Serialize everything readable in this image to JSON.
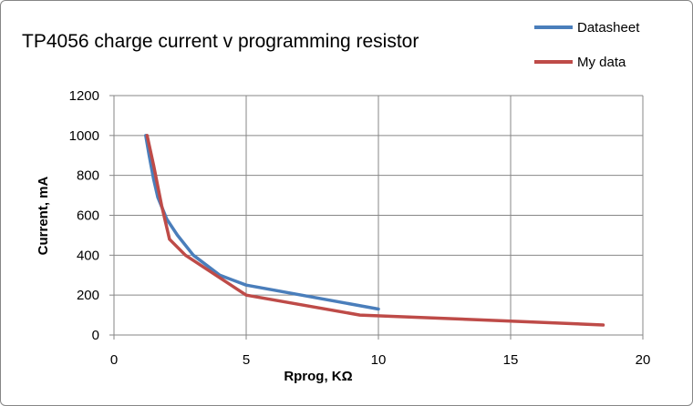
{
  "chart_data": {
    "type": "line",
    "title": "TP4056 charge current v programming resistor",
    "xlabel": "Rprog, KΩ",
    "ylabel": "Current, mA",
    "xlim": [
      0,
      20
    ],
    "ylim": [
      0,
      1200
    ],
    "xticks": [
      0,
      5,
      10,
      15,
      20
    ],
    "yticks": [
      0,
      200,
      400,
      600,
      800,
      1000,
      1200
    ],
    "grid": "vertical and horizontal major gridlines",
    "legend_position": "top-right",
    "series": [
      {
        "name": "Datasheet",
        "color": "#4A7EBB",
        "points": [
          [
            1.2,
            1000
          ],
          [
            1.33,
            900
          ],
          [
            1.5,
            780
          ],
          [
            1.66,
            690
          ],
          [
            2.0,
            580
          ],
          [
            2.4,
            500
          ],
          [
            3.0,
            400
          ],
          [
            4.0,
            300
          ],
          [
            5.0,
            250
          ],
          [
            10.0,
            130
          ]
        ]
      },
      {
        "name": "My data",
        "color": "#BE4B48",
        "points": [
          [
            1.25,
            1000
          ],
          [
            1.5,
            850
          ],
          [
            1.8,
            650
          ],
          [
            2.1,
            480
          ],
          [
            2.7,
            400
          ],
          [
            5.0,
            200
          ],
          [
            9.3,
            100
          ],
          [
            15.0,
            70
          ],
          [
            18.5,
            50
          ]
        ]
      }
    ]
  }
}
